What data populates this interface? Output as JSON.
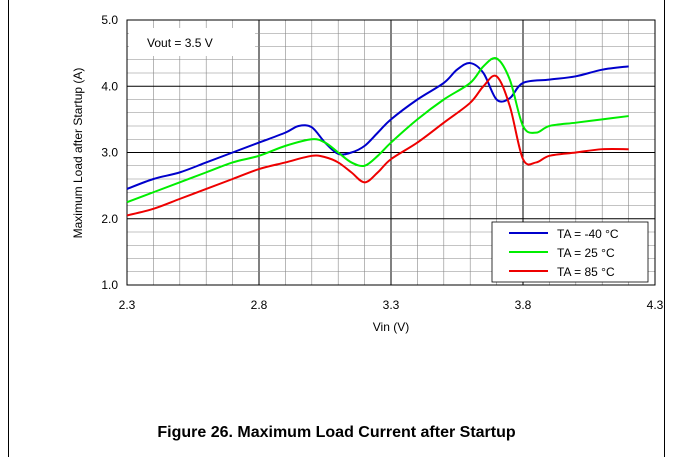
{
  "figure": {
    "caption": "Figure 26.  Maximum Load Current after Startup"
  },
  "chart_data": {
    "type": "line",
    "xlabel": "Vin (V)",
    "ylabel": "Maximum Load after Startup (A)",
    "xlim": [
      2.3,
      4.3
    ],
    "ylim": [
      1.0,
      5.0
    ],
    "x_ticks": [
      "2.3",
      "2.8",
      "3.3",
      "3.8",
      "4.3"
    ],
    "y_ticks": [
      "1.0",
      "2.0",
      "3.0",
      "4.0",
      "5.0"
    ],
    "grid": true,
    "annotation": "Vout = 3.5 V",
    "legend_position": "bottom-right",
    "series": [
      {
        "name": "TA = -40 °C",
        "color": "#0000cc",
        "x": [
          2.3,
          2.4,
          2.5,
          2.6,
          2.7,
          2.8,
          2.9,
          2.95,
          3.0,
          3.05,
          3.1,
          3.15,
          3.2,
          3.25,
          3.3,
          3.4,
          3.5,
          3.55,
          3.6,
          3.65,
          3.7,
          3.75,
          3.8,
          3.9,
          4.0,
          4.1,
          4.2
        ],
        "y": [
          2.45,
          2.6,
          2.7,
          2.85,
          3.0,
          3.15,
          3.3,
          3.4,
          3.38,
          3.15,
          2.98,
          3.0,
          3.1,
          3.3,
          3.5,
          3.8,
          4.05,
          4.25,
          4.35,
          4.2,
          3.8,
          3.82,
          4.05,
          4.1,
          4.15,
          4.25,
          4.3
        ]
      },
      {
        "name": "TA = 25 °C",
        "color": "#00ee00",
        "x": [
          2.3,
          2.4,
          2.5,
          2.6,
          2.7,
          2.8,
          2.9,
          3.0,
          3.05,
          3.1,
          3.15,
          3.2,
          3.25,
          3.3,
          3.4,
          3.5,
          3.6,
          3.65,
          3.7,
          3.75,
          3.8,
          3.85,
          3.9,
          4.0,
          4.1,
          4.2
        ],
        "y": [
          2.25,
          2.4,
          2.55,
          2.7,
          2.85,
          2.95,
          3.1,
          3.2,
          3.15,
          3.0,
          2.85,
          2.8,
          2.95,
          3.15,
          3.5,
          3.8,
          4.05,
          4.3,
          4.42,
          4.1,
          3.4,
          3.3,
          3.4,
          3.45,
          3.5,
          3.55
        ]
      },
      {
        "name": "TA = 85 °C",
        "color": "#ee0000",
        "x": [
          2.3,
          2.4,
          2.5,
          2.6,
          2.7,
          2.8,
          2.9,
          3.0,
          3.05,
          3.1,
          3.15,
          3.2,
          3.25,
          3.3,
          3.4,
          3.5,
          3.6,
          3.65,
          3.7,
          3.75,
          3.8,
          3.85,
          3.9,
          4.0,
          4.1,
          4.2
        ],
        "y": [
          2.05,
          2.15,
          2.3,
          2.45,
          2.6,
          2.75,
          2.85,
          2.95,
          2.93,
          2.85,
          2.7,
          2.55,
          2.7,
          2.9,
          3.15,
          3.45,
          3.75,
          4.0,
          4.15,
          3.7,
          2.9,
          2.85,
          2.95,
          3.0,
          3.05,
          3.05
        ]
      }
    ]
  }
}
